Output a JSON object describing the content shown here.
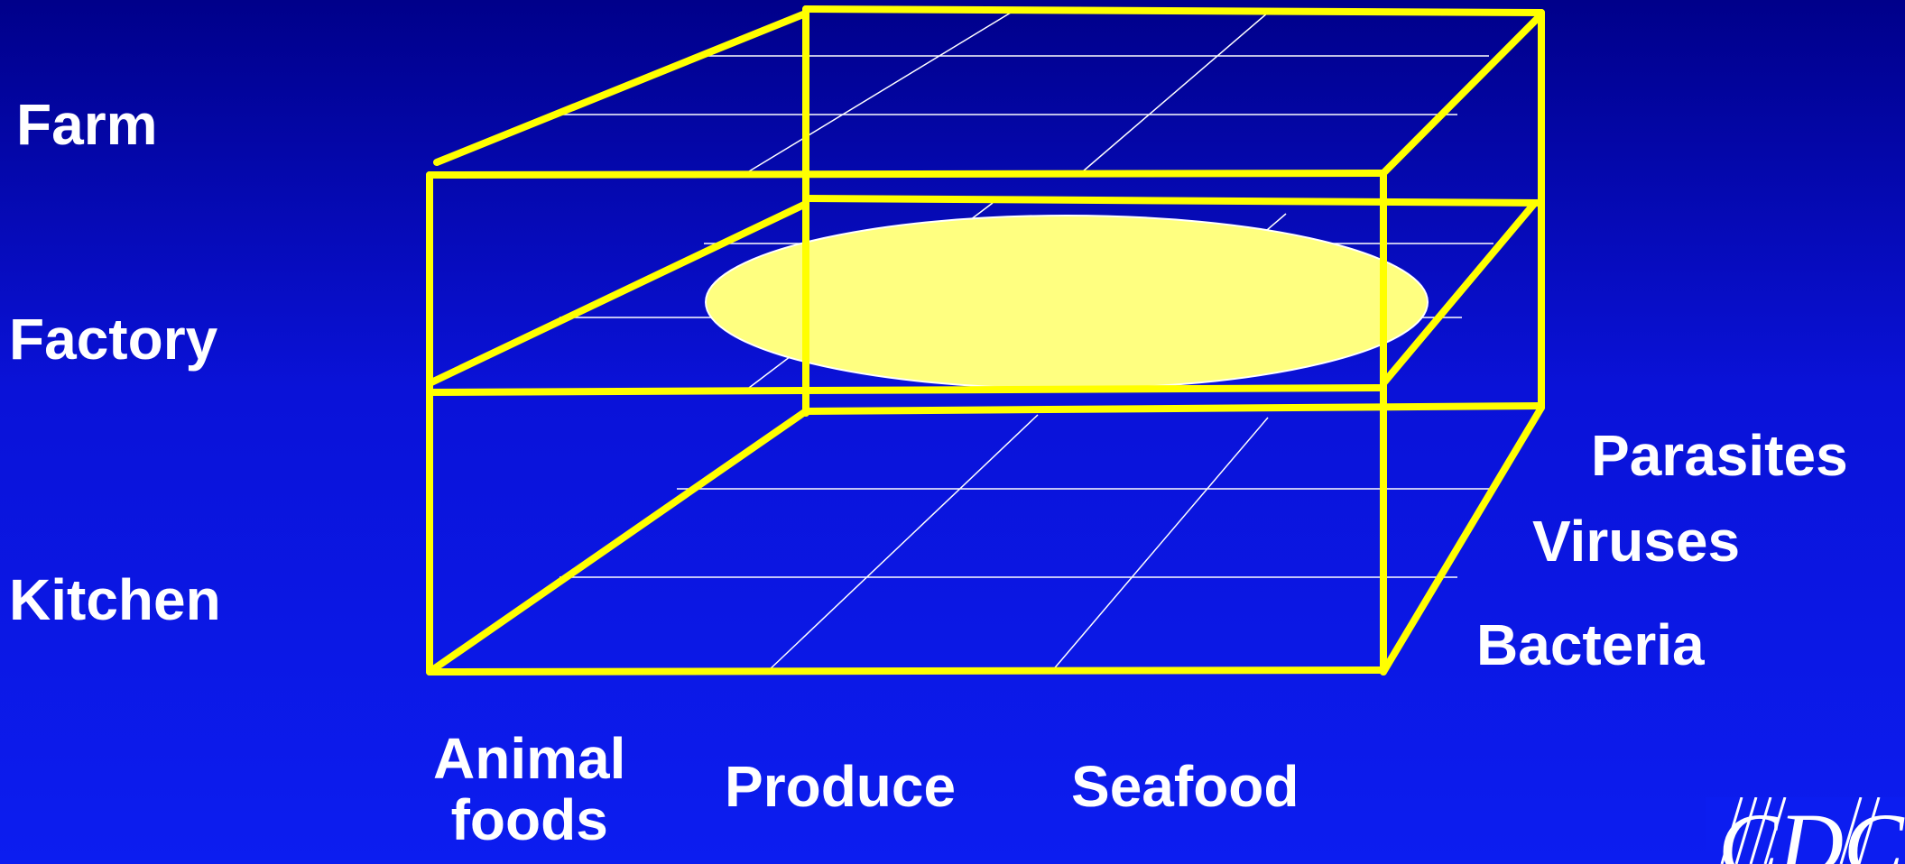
{
  "stages": {
    "farm": "Farm",
    "factory": "Factory",
    "kitchen": "Kitchen"
  },
  "categories": {
    "animal_foods_line1": "Animal",
    "animal_foods_line2": "foods",
    "produce": "Produce",
    "seafood": "Seafood"
  },
  "agents": {
    "parasites": "Parasites",
    "viruses": "Viruses",
    "bacteria": "Bacteria"
  },
  "logo": {
    "text": "CDC"
  },
  "colors": {
    "background_top": "#00008a",
    "background_bottom": "#0c1df0",
    "frame": "#ffff00",
    "highlight": "#ffff80",
    "text": "#ffffff"
  }
}
